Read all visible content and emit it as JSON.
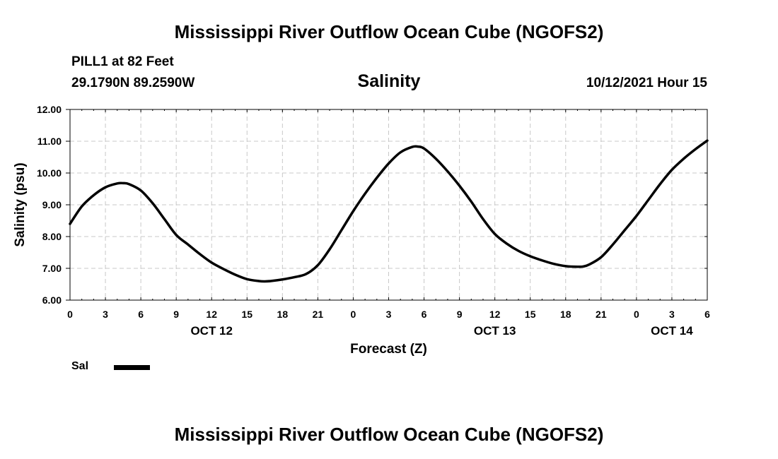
{
  "header": {
    "title": "Mississippi River Outflow Ocean Cube (NGOFS2)",
    "station": "PILL1 at 82 Feet",
    "coords": "29.1790N  89.2590W",
    "variable": "Salinity",
    "datetime": "10/12/2021 Hour 15"
  },
  "footer": {
    "title": "Mississippi River Outflow Ocean Cube (NGOFS2)"
  },
  "legend": {
    "label": "Sal",
    "color": "#000000"
  },
  "chart_data": {
    "type": "line",
    "title": "Salinity",
    "xlabel": "Forecast (Z)",
    "ylabel": "Salinity (psu)",
    "xlim": [
      0,
      54
    ],
    "ylim": [
      6,
      12
    ],
    "x_ticks": [
      0,
      3,
      6,
      9,
      12,
      15,
      18,
      21,
      24,
      27,
      30,
      33,
      36,
      39,
      42,
      45,
      48,
      51,
      54
    ],
    "x_tick_labels": [
      "0",
      "3",
      "6",
      "9",
      "12",
      "15",
      "18",
      "21",
      "0",
      "3",
      "6",
      "9",
      "12",
      "15",
      "18",
      "21",
      "0",
      "3",
      "6"
    ],
    "y_ticks": [
      6,
      7,
      8,
      9,
      10,
      11,
      12
    ],
    "y_tick_labels": [
      "6.00",
      "7.00",
      "8.00",
      "9.00",
      "10.00",
      "11.00",
      "12.00"
    ],
    "date_labels": [
      {
        "x": 12,
        "label": "OCT 12"
      },
      {
        "x": 36,
        "label": "OCT 13"
      },
      {
        "x": 51,
        "label": "OCT 14"
      }
    ],
    "grid": true,
    "series": [
      {
        "name": "Sal",
        "x": [
          0,
          1,
          2,
          3,
          4,
          4.5,
          5,
          6,
          7,
          8,
          9,
          10,
          11,
          12,
          13,
          14,
          15,
          16,
          16.5,
          17,
          18,
          19,
          20,
          21,
          22,
          23,
          24,
          25,
          26,
          27,
          28,
          29,
          29.5,
          30,
          31,
          32,
          33,
          34,
          35,
          36,
          37,
          38,
          39,
          40,
          41,
          42,
          43,
          43.5,
          44,
          45,
          46,
          47,
          48,
          49,
          50,
          51,
          52,
          53,
          54
        ],
        "values": [
          8.4,
          8.95,
          9.3,
          9.55,
          9.67,
          9.68,
          9.65,
          9.45,
          9.05,
          8.55,
          8.05,
          7.75,
          7.45,
          7.18,
          6.98,
          6.8,
          6.66,
          6.6,
          6.59,
          6.6,
          6.65,
          6.72,
          6.82,
          7.1,
          7.6,
          8.2,
          8.8,
          9.35,
          9.85,
          10.3,
          10.65,
          10.82,
          10.83,
          10.77,
          10.45,
          10.05,
          9.6,
          9.1,
          8.55,
          8.08,
          7.78,
          7.55,
          7.38,
          7.25,
          7.14,
          7.07,
          7.05,
          7.06,
          7.12,
          7.35,
          7.75,
          8.2,
          8.65,
          9.15,
          9.65,
          10.1,
          10.45,
          10.75,
          11.02
        ]
      }
    ]
  }
}
